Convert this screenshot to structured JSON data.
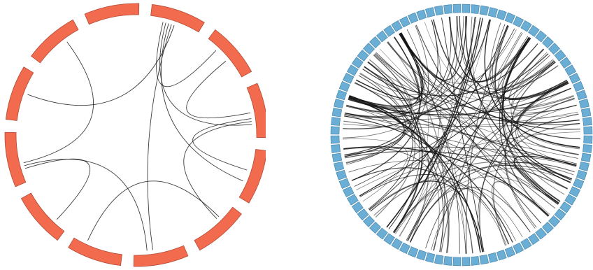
{
  "diagrams": [
    {
      "id": "small-circle",
      "segment_color": "#F26B4E",
      "segment_stroke": "#B24A34",
      "segment_count": 12,
      "link_color": "#1a1a1a",
      "links": [
        [
          0,
          1
        ],
        [
          0,
          2
        ],
        [
          0,
          3
        ],
        [
          0,
          5
        ],
        [
          0,
          9
        ],
        [
          1,
          2
        ],
        [
          2,
          3
        ],
        [
          2,
          4
        ],
        [
          5,
          8
        ],
        [
          7,
          8
        ],
        [
          4,
          6
        ],
        [
          8,
          10
        ]
      ]
    },
    {
      "id": "large-circle",
      "segment_color": "#6AAED6",
      "segment_stroke": "#3F7FA6",
      "segment_count": 88,
      "link_color": "#111111",
      "link_count": 140
    }
  ]
}
